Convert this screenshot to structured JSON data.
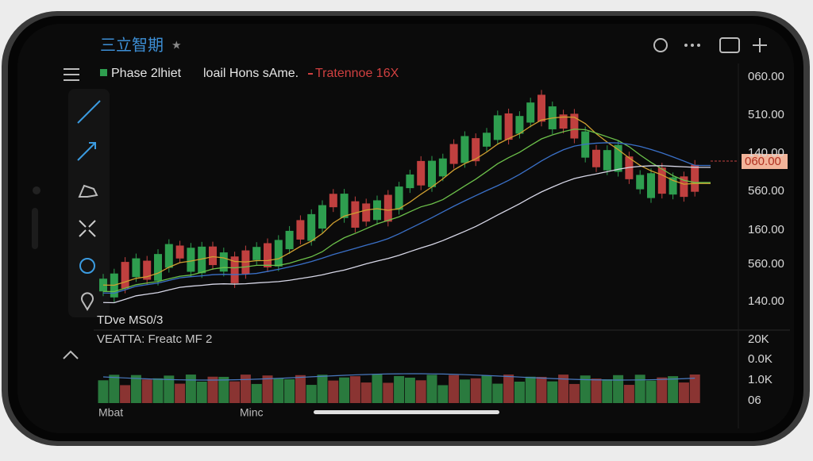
{
  "app": {
    "title": "三立智期"
  },
  "legend": [
    "Phase 2lhiet",
    "loail Hons sAme.",
    "Tratennoe 16X"
  ],
  "price_axis": [
    "060.00",
    "510.00",
    "140.00",
    "560.00",
    "160.00",
    "560.00",
    "140.00"
  ],
  "price_tag": "060.00",
  "indicator_label": "TDve MS0/3",
  "volume_label": "VEATTA: Freatc MF 2",
  "volume_axis": [
    "20K",
    "0.0K",
    "1.0K",
    "06"
  ],
  "time_axis": [
    "Mbat",
    "Minc"
  ]
}
